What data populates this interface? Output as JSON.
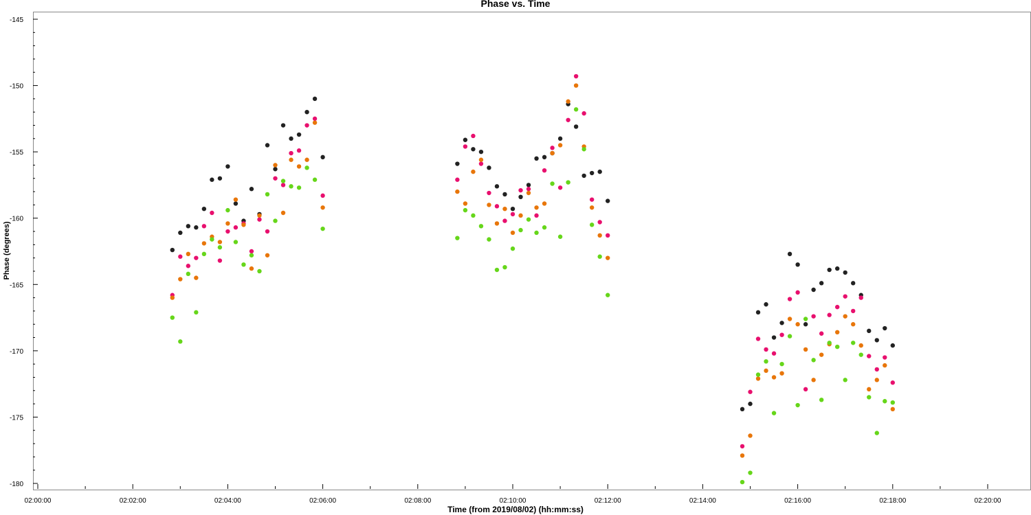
{
  "chart_data": {
    "type": "scatter",
    "title": "Phase vs. Time",
    "xlabel": "Time (from 2019/08/02) (hh:mm:ss)",
    "ylabel": "Phase (degrees)",
    "xlim": [
      "02:00:00",
      "02:21:00"
    ],
    "ylim": [
      -180,
      -145
    ],
    "x_ticks": [
      "02:00:00",
      "02:02:00",
      "02:04:00",
      "02:06:00",
      "02:08:00",
      "02:10:00",
      "02:12:00",
      "02:14:00",
      "02:16:00",
      "02:18:00",
      "02:20:00"
    ],
    "y_ticks": [
      -145,
      -150,
      -155,
      -160,
      -165,
      -170,
      -175,
      -180
    ],
    "grid": false,
    "colors": [
      "#222222",
      "#e8106e",
      "#e8760a",
      "#66d61a"
    ],
    "series": [
      {
        "color": "#222222",
        "points": [
          [
            "02:02:50",
            -162.4
          ],
          [
            "02:03:00",
            -161.1
          ],
          [
            "02:03:10",
            -160.6
          ],
          [
            "02:03:20",
            -160.7
          ],
          [
            "02:03:30",
            -159.3
          ],
          [
            "02:03:40",
            -157.1
          ],
          [
            "02:03:50",
            -157.0
          ],
          [
            "02:04:00",
            -156.1
          ],
          [
            "02:04:10",
            -158.9
          ],
          [
            "02:04:20",
            -160.2
          ],
          [
            "02:04:30",
            -157.8
          ],
          [
            "02:04:40",
            -159.7
          ],
          [
            "02:04:50",
            -154.5
          ],
          [
            "02:05:00",
            -156.3
          ],
          [
            "02:05:10",
            -153.0
          ],
          [
            "02:05:20",
            -154.0
          ],
          [
            "02:05:30",
            -153.7
          ],
          [
            "02:05:40",
            -152.0
          ],
          [
            "02:05:50",
            -151.0
          ],
          [
            "02:06:00",
            -155.4
          ],
          [
            "02:08:50",
            -155.9
          ],
          [
            "02:09:00",
            -154.1
          ],
          [
            "02:09:10",
            -154.8
          ],
          [
            "02:09:20",
            -155.0
          ],
          [
            "02:09:30",
            -156.2
          ],
          [
            "02:09:40",
            -157.6
          ],
          [
            "02:09:50",
            -158.2
          ],
          [
            "02:10:00",
            -159.3
          ],
          [
            "02:10:10",
            -158.4
          ],
          [
            "02:10:20",
            -157.5
          ],
          [
            "02:10:30",
            -155.5
          ],
          [
            "02:10:40",
            -155.4
          ],
          [
            "02:10:50",
            -155.1
          ],
          [
            "02:11:00",
            -154.0
          ],
          [
            "02:11:10",
            -151.4
          ],
          [
            "02:11:20",
            -153.1
          ],
          [
            "02:11:30",
            -156.8
          ],
          [
            "02:11:40",
            -156.6
          ],
          [
            "02:11:50",
            -156.5
          ],
          [
            "02:12:00",
            -158.7
          ],
          [
            "02:14:50",
            -174.4
          ],
          [
            "02:15:00",
            -174.0
          ],
          [
            "02:15:10",
            -167.1
          ],
          [
            "02:15:20",
            -166.5
          ],
          [
            "02:15:30",
            -169.0
          ],
          [
            "02:15:40",
            -167.9
          ],
          [
            "02:15:50",
            -162.7
          ],
          [
            "02:16:00",
            -163.5
          ],
          [
            "02:16:10",
            -168.0
          ],
          [
            "02:16:20",
            -165.4
          ],
          [
            "02:16:30",
            -164.9
          ],
          [
            "02:16:40",
            -163.9
          ],
          [
            "02:16:50",
            -163.8
          ],
          [
            "02:17:00",
            -164.1
          ],
          [
            "02:17:10",
            -164.9
          ],
          [
            "02:17:20",
            -165.8
          ],
          [
            "02:17:30",
            -168.5
          ],
          [
            "02:17:40",
            -169.2
          ],
          [
            "02:17:50",
            -168.3
          ],
          [
            "02:18:00",
            -169.6
          ]
        ]
      },
      {
        "color": "#e8106e",
        "points": [
          [
            "02:02:50",
            -165.8
          ],
          [
            "02:03:00",
            -162.9
          ],
          [
            "02:03:10",
            -163.6
          ],
          [
            "02:03:20",
            -163.0
          ],
          [
            "02:03:30",
            -160.6
          ],
          [
            "02:03:40",
            -159.6
          ],
          [
            "02:03:50",
            -163.2
          ],
          [
            "02:04:00",
            -161.0
          ],
          [
            "02:04:10",
            -160.7
          ],
          [
            "02:04:20",
            -160.4
          ],
          [
            "02:04:30",
            -162.5
          ],
          [
            "02:04:40",
            -160.1
          ],
          [
            "02:04:50",
            -161.0
          ],
          [
            "02:05:00",
            -157.0
          ],
          [
            "02:05:10",
            -157.5
          ],
          [
            "02:05:20",
            -155.1
          ],
          [
            "02:05:30",
            -154.9
          ],
          [
            "02:05:40",
            -153.0
          ],
          [
            "02:05:50",
            -152.5
          ],
          [
            "02:06:00",
            -158.3
          ],
          [
            "02:08:50",
            -157.1
          ],
          [
            "02:09:00",
            -154.6
          ],
          [
            "02:09:10",
            -153.8
          ],
          [
            "02:09:20",
            -155.9
          ],
          [
            "02:09:30",
            -158.1
          ],
          [
            "02:09:40",
            -159.1
          ],
          [
            "02:09:50",
            -160.2
          ],
          [
            "02:10:00",
            -159.7
          ],
          [
            "02:10:10",
            -157.9
          ],
          [
            "02:10:20",
            -157.8
          ],
          [
            "02:10:30",
            -159.8
          ],
          [
            "02:10:40",
            -156.4
          ],
          [
            "02:10:50",
            -154.7
          ],
          [
            "02:11:00",
            -157.7
          ],
          [
            "02:11:10",
            -152.6
          ],
          [
            "02:11:20",
            -149.3
          ],
          [
            "02:11:30",
            -152.1
          ],
          [
            "02:11:40",
            -158.6
          ],
          [
            "02:11:50",
            -160.3
          ],
          [
            "02:12:00",
            -161.3
          ],
          [
            "02:14:50",
            -177.2
          ],
          [
            "02:15:00",
            -173.1
          ],
          [
            "02:15:10",
            -169.1
          ],
          [
            "02:15:20",
            -169.9
          ],
          [
            "02:15:30",
            -170.2
          ],
          [
            "02:15:40",
            -168.8
          ],
          [
            "02:15:50",
            -166.1
          ],
          [
            "02:16:00",
            -165.6
          ],
          [
            "02:16:10",
            -172.9
          ],
          [
            "02:16:20",
            -167.4
          ],
          [
            "02:16:30",
            -168.7
          ],
          [
            "02:16:40",
            -167.3
          ],
          [
            "02:16:50",
            -166.7
          ],
          [
            "02:17:00",
            -165.9
          ],
          [
            "02:17:10",
            -167.0
          ],
          [
            "02:17:20",
            -166.0
          ],
          [
            "02:17:30",
            -170.4
          ],
          [
            "02:17:40",
            -171.4
          ],
          [
            "02:17:50",
            -170.5
          ],
          [
            "02:18:00",
            -172.4
          ]
        ]
      },
      {
        "color": "#e8760a",
        "points": [
          [
            "02:02:50",
            -166.0
          ],
          [
            "02:03:00",
            -164.6
          ],
          [
            "02:03:10",
            -162.7
          ],
          [
            "02:03:20",
            -164.5
          ],
          [
            "02:03:30",
            -161.9
          ],
          [
            "02:03:40",
            -161.4
          ],
          [
            "02:03:50",
            -161.8
          ],
          [
            "02:04:00",
            -160.4
          ],
          [
            "02:04:10",
            -158.6
          ],
          [
            "02:04:20",
            -160.5
          ],
          [
            "02:04:30",
            -163.8
          ],
          [
            "02:04:40",
            -159.8
          ],
          [
            "02:04:50",
            -162.8
          ],
          [
            "02:05:00",
            -156.0
          ],
          [
            "02:05:10",
            -159.6
          ],
          [
            "02:05:20",
            -155.6
          ],
          [
            "02:05:30",
            -156.1
          ],
          [
            "02:05:40",
            -155.6
          ],
          [
            "02:05:50",
            -152.8
          ],
          [
            "02:06:00",
            -159.2
          ],
          [
            "02:08:50",
            -158.0
          ],
          [
            "02:09:00",
            -158.9
          ],
          [
            "02:09:10",
            -156.5
          ],
          [
            "02:09:20",
            -155.6
          ],
          [
            "02:09:30",
            -159.0
          ],
          [
            "02:09:40",
            -160.4
          ],
          [
            "02:09:50",
            -159.3
          ],
          [
            "02:10:00",
            -161.1
          ],
          [
            "02:10:10",
            -159.8
          ],
          [
            "02:10:20",
            -158.1
          ],
          [
            "02:10:30",
            -159.2
          ],
          [
            "02:10:40",
            -158.9
          ],
          [
            "02:10:50",
            -155.1
          ],
          [
            "02:11:00",
            -154.5
          ],
          [
            "02:11:10",
            -151.2
          ],
          [
            "02:11:20",
            -150.0
          ],
          [
            "02:11:30",
            -154.6
          ],
          [
            "02:11:40",
            -159.2
          ],
          [
            "02:11:50",
            -161.3
          ],
          [
            "02:12:00",
            -163.0
          ],
          [
            "02:14:50",
            -177.9
          ],
          [
            "02:15:00",
            -176.4
          ],
          [
            "02:15:10",
            -172.1
          ],
          [
            "02:15:20",
            -171.5
          ],
          [
            "02:15:30",
            -172.0
          ],
          [
            "02:15:40",
            -171.7
          ],
          [
            "02:15:50",
            -167.6
          ],
          [
            "02:16:00",
            -168.0
          ],
          [
            "02:16:10",
            -169.9
          ],
          [
            "02:16:20",
            -172.2
          ],
          [
            "02:16:30",
            -170.3
          ],
          [
            "02:16:40",
            -169.5
          ],
          [
            "02:16:50",
            -168.6
          ],
          [
            "02:17:00",
            -167.4
          ],
          [
            "02:17:10",
            -168.0
          ],
          [
            "02:17:20",
            -169.6
          ],
          [
            "02:17:30",
            -172.9
          ],
          [
            "02:17:40",
            -172.2
          ],
          [
            "02:17:50",
            -171.1
          ],
          [
            "02:18:00",
            -174.4
          ]
        ]
      },
      {
        "color": "#66d61a",
        "points": [
          [
            "02:02:50",
            -167.5
          ],
          [
            "02:03:00",
            -169.3
          ],
          [
            "02:03:10",
            -164.2
          ],
          [
            "02:03:20",
            -167.1
          ],
          [
            "02:03:30",
            -162.7
          ],
          [
            "02:03:40",
            -161.6
          ],
          [
            "02:03:50",
            -162.2
          ],
          [
            "02:04:00",
            -159.4
          ],
          [
            "02:04:10",
            -161.8
          ],
          [
            "02:04:20",
            -163.5
          ],
          [
            "02:04:30",
            -162.8
          ],
          [
            "02:04:40",
            -164.0
          ],
          [
            "02:04:50",
            -158.2
          ],
          [
            "02:05:00",
            -160.2
          ],
          [
            "02:05:10",
            -157.2
          ],
          [
            "02:05:20",
            -157.6
          ],
          [
            "02:05:30",
            -157.7
          ],
          [
            "02:05:40",
            -156.2
          ],
          [
            "02:05:50",
            -157.1
          ],
          [
            "02:06:00",
            -160.8
          ],
          [
            "02:08:50",
            -161.5
          ],
          [
            "02:09:00",
            -159.4
          ],
          [
            "02:09:10",
            -159.8
          ],
          [
            "02:09:20",
            -160.6
          ],
          [
            "02:09:30",
            -161.6
          ],
          [
            "02:09:40",
            -163.9
          ],
          [
            "02:09:50",
            -163.7
          ],
          [
            "02:10:00",
            -162.3
          ],
          [
            "02:10:10",
            -160.9
          ],
          [
            "02:10:20",
            -160.1
          ],
          [
            "02:10:30",
            -161.1
          ],
          [
            "02:10:40",
            -160.7
          ],
          [
            "02:10:50",
            -157.4
          ],
          [
            "02:11:00",
            -161.4
          ],
          [
            "02:11:10",
            -157.3
          ],
          [
            "02:11:20",
            -151.8
          ],
          [
            "02:11:30",
            -154.8
          ],
          [
            "02:11:40",
            -160.5
          ],
          [
            "02:11:50",
            -162.9
          ],
          [
            "02:12:00",
            -165.8
          ],
          [
            "02:14:50",
            -179.9
          ],
          [
            "02:15:00",
            -179.2
          ],
          [
            "02:15:10",
            -171.8
          ],
          [
            "02:15:20",
            -170.8
          ],
          [
            "02:15:30",
            -174.7
          ],
          [
            "02:15:40",
            -171.0
          ],
          [
            "02:15:50",
            -168.9
          ],
          [
            "02:16:00",
            -174.1
          ],
          [
            "02:16:10",
            -167.6
          ],
          [
            "02:16:20",
            -170.7
          ],
          [
            "02:16:30",
            -173.7
          ],
          [
            "02:16:40",
            -169.4
          ],
          [
            "02:16:50",
            -169.7
          ],
          [
            "02:17:00",
            -172.2
          ],
          [
            "02:17:10",
            -169.4
          ],
          [
            "02:17:20",
            -170.3
          ],
          [
            "02:17:30",
            -173.5
          ],
          [
            "02:17:40",
            -176.2
          ],
          [
            "02:17:50",
            -173.8
          ],
          [
            "02:18:00",
            -173.9
          ]
        ]
      }
    ]
  }
}
